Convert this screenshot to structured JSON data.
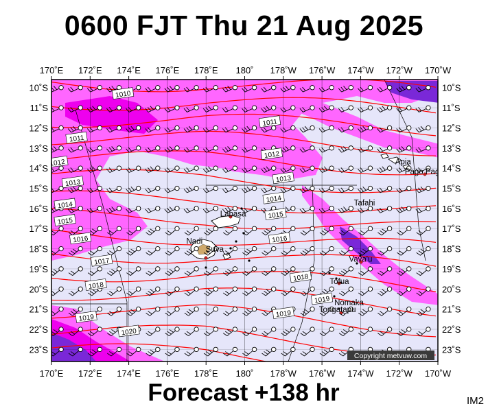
{
  "title": "0600 FJT Thu 21 Aug 2025",
  "footer": "Forecast +138 hr",
  "corner_code": "IM2",
  "copyright": "Copyright metvuw.com",
  "colors": {
    "background_fill": "#e6e6fa",
    "precip_light": "#ff66ff",
    "precip_medium": "#ee00ee",
    "precip_heavy": "#7a28d8",
    "isobar": "#ff0000",
    "land": "#ffffff",
    "border": "#000000"
  },
  "axes": {
    "lon_labels": [
      "170˚E",
      "172˚E",
      "174˚E",
      "176˚E",
      "178˚E",
      "180˚",
      "178˚W",
      "176˚W",
      "174˚W",
      "172˚W",
      "170˚W"
    ],
    "lat_labels": [
      "10˚S",
      "11˚S",
      "12˚S",
      "13˚S",
      "14˚S",
      "15˚S",
      "16˚S",
      "17˚S",
      "18˚S",
      "19˚S",
      "20˚S",
      "21˚S",
      "22˚S",
      "23˚S"
    ]
  },
  "isobar_labels": [
    {
      "text": "1010",
      "lon": 173.7,
      "lat": -10.3
    },
    {
      "text": "1011",
      "lon": 171.3,
      "lat": -12.5
    },
    {
      "text": "1011",
      "lon": 181.3,
      "lat": -11.7
    },
    {
      "text": "1012",
      "lon": 170.3,
      "lat": -13.7
    },
    {
      "text": "1012",
      "lon": 181.4,
      "lat": -13.3
    },
    {
      "text": "1013",
      "lon": 171.1,
      "lat": -14.7
    },
    {
      "text": "1013",
      "lon": 182.0,
      "lat": -14.5
    },
    {
      "text": "1014",
      "lon": 170.7,
      "lat": -15.8
    },
    {
      "text": "1014",
      "lon": 181.5,
      "lat": -15.5
    },
    {
      "text": "1015",
      "lon": 170.7,
      "lat": -16.6
    },
    {
      "text": "1015",
      "lon": 181.6,
      "lat": -16.3
    },
    {
      "text": "1016",
      "lon": 171.5,
      "lat": -17.5
    },
    {
      "text": "1016",
      "lon": 181.8,
      "lat": -17.5
    },
    {
      "text": "1017",
      "lon": 172.6,
      "lat": -18.6
    },
    {
      "text": "1018",
      "lon": 172.3,
      "lat": -19.8
    },
    {
      "text": "1018",
      "lon": 182.9,
      "lat": -19.4
    },
    {
      "text": "1019",
      "lon": 171.8,
      "lat": -21.4
    },
    {
      "text": "1019",
      "lon": 184.0,
      "lat": -20.5
    },
    {
      "text": "1019",
      "lon": 182.0,
      "lat": -21.2
    },
    {
      "text": "1020",
      "lon": 174.0,
      "lat": -22.1
    }
  ],
  "places": [
    {
      "name": "Apia",
      "lon": 188.2,
      "lat": -13.8
    },
    {
      "name": "Pago Pago",
      "lon": 189.3,
      "lat": -14.3
    },
    {
      "name": "Tafahi",
      "lon": 186.2,
      "lat": -15.85
    },
    {
      "name": "Labasa",
      "lon": 179.4,
      "lat": -16.4
    },
    {
      "name": "Nadi",
      "lon": 177.4,
      "lat": -17.75
    },
    {
      "name": "Suva",
      "lon": 178.45,
      "lat": -18.15
    },
    {
      "name": "Vava'u",
      "lon": 186.0,
      "lat": -18.65
    },
    {
      "name": "Tofua",
      "lon": 184.9,
      "lat": -19.75
    },
    {
      "name": "Nomaka",
      "lon": 185.4,
      "lat": -20.8
    },
    {
      "name": "Tongatapu",
      "lon": 184.8,
      "lat": -21.15
    }
  ]
}
